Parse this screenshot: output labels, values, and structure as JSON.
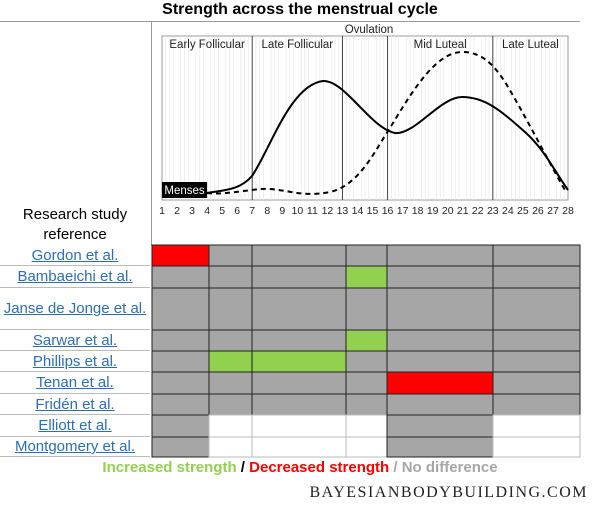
{
  "title": "Strength across the menstrual cycle",
  "chart": {
    "ovulation_label": "Ovulation",
    "phases": [
      "Early Follicular",
      "Late Follicular",
      "Mid Luteal",
      "Late Luteal"
    ],
    "phase_boundaries_days": [
      7,
      13,
      16,
      23
    ],
    "menses_label": "Menses",
    "menses_days": [
      1,
      4
    ],
    "day_ticks": [
      1,
      2,
      3,
      4,
      5,
      6,
      7,
      8,
      9,
      10,
      11,
      12,
      13,
      14,
      15,
      16,
      17,
      18,
      19,
      20,
      21,
      22,
      23,
      24,
      25,
      26,
      27,
      28
    ]
  },
  "table": {
    "header": "Research study reference",
    "column_day_boundaries": [
      1,
      4,
      7,
      13,
      16,
      23,
      28
    ],
    "colors": {
      "none": "#a6a6a6",
      "increased": "#92d050",
      "decreased": "#ff0000",
      "not_tested": "#ffffff"
    },
    "rows": [
      {
        "study": "Gordon et al.",
        "cells": [
          "decreased",
          "none",
          "none",
          "none",
          "none",
          "none"
        ]
      },
      {
        "study": "Bambaeichi et al.",
        "cells": [
          "none",
          "none",
          "none",
          "increased",
          "none",
          "none"
        ]
      },
      {
        "study": "Janse de Jonge et al.",
        "cells": [
          "none",
          "none",
          "none",
          "none",
          "none",
          "none"
        ]
      },
      {
        "study": "Sarwar et al.",
        "cells": [
          "none",
          "none",
          "none",
          "increased",
          "none",
          "none"
        ]
      },
      {
        "study": "Phillips et al.",
        "cells": [
          "none",
          "increased",
          "increased",
          "none",
          "none",
          "none"
        ]
      },
      {
        "study": "Tenan et al.",
        "cells": [
          "none",
          "none",
          "none",
          "none",
          "decreased",
          "none"
        ]
      },
      {
        "study": "Fridén et al.",
        "cells": [
          "none",
          "none",
          "none",
          "none",
          "none",
          "none"
        ]
      },
      {
        "study": "Elliott  et al.",
        "cells": [
          "none",
          "not_tested",
          "not_tested",
          "not_tested",
          "none",
          "not_tested"
        ]
      },
      {
        "study": "Montgomery et al.",
        "cells": [
          "none",
          "not_tested",
          "not_tested",
          "not_tested",
          "none",
          "not_tested"
        ]
      }
    ]
  },
  "legend": {
    "increased": "Increased strength",
    "sep1": " / ",
    "decreased": "Decreased strength",
    "sep2": " / ",
    "none": "No difference",
    "increased_color": "#92d050",
    "decreased_color": "#ff0000",
    "none_color": "#a6a6a6"
  },
  "footer": "BAYESIANBODYBUILDING.COM"
}
